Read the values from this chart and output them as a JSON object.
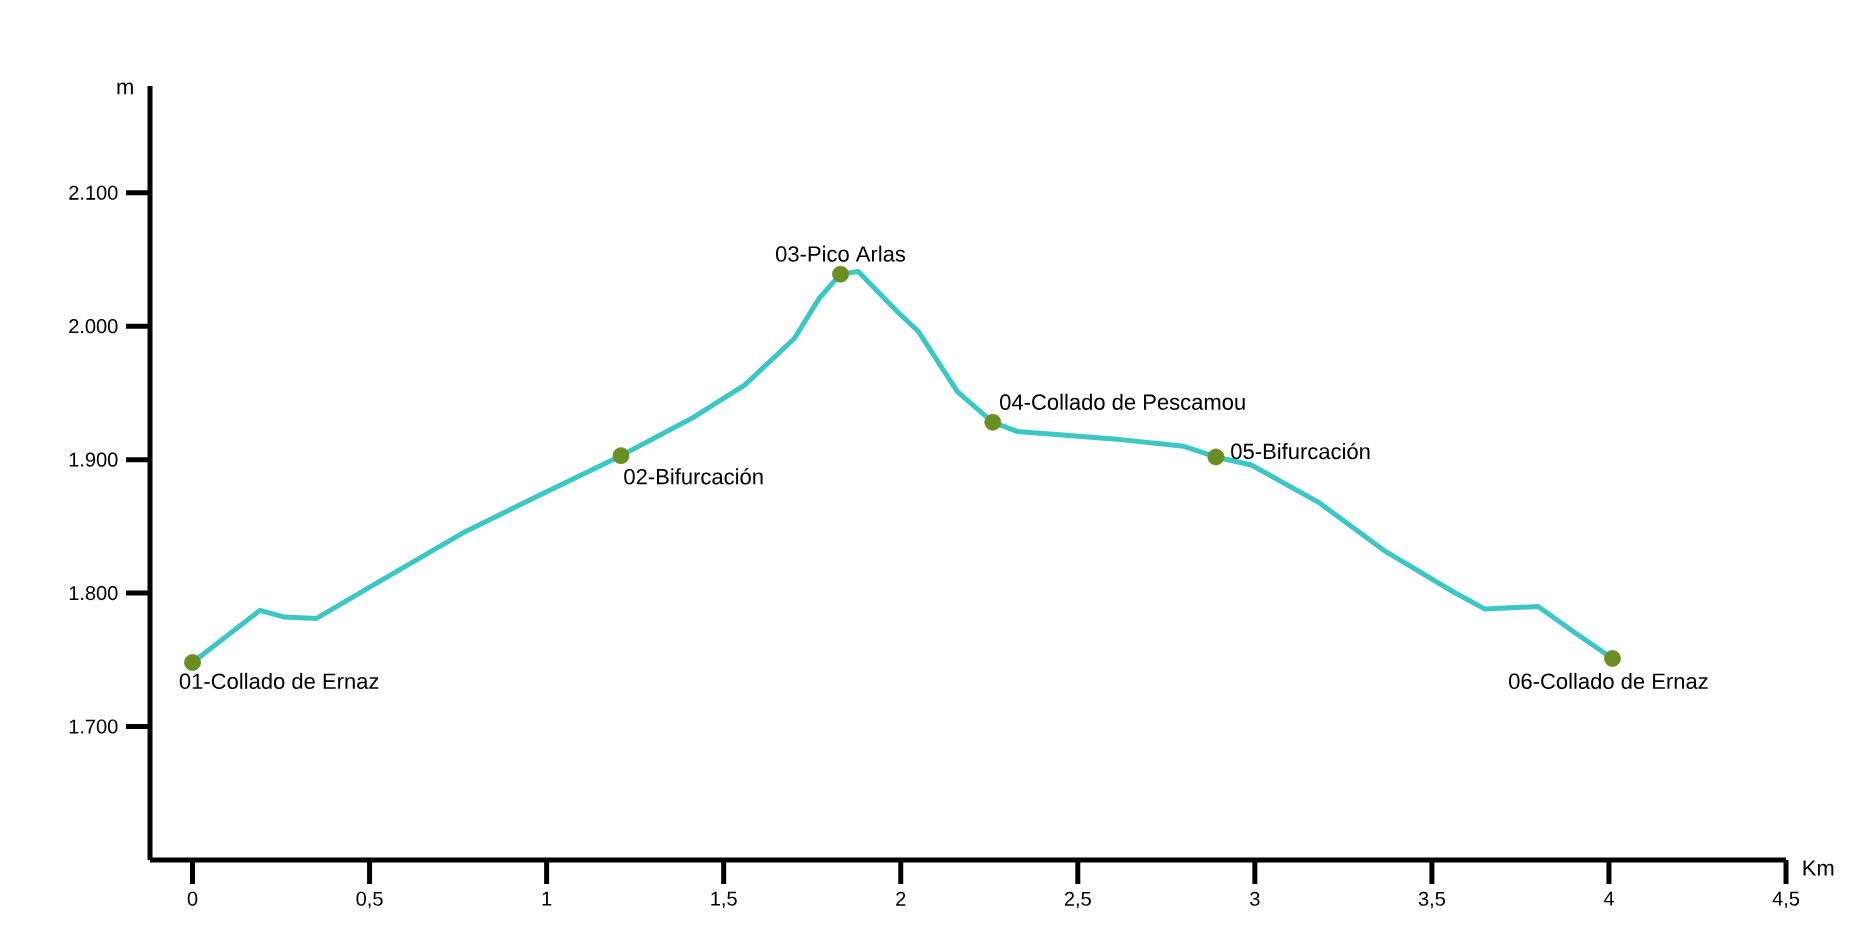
{
  "chart_data": {
    "type": "line",
    "xlabel": "Km",
    "ylabel": "m",
    "xlim": [
      -0.12,
      4.5
    ],
    "ylim": [
      1600,
      2180
    ],
    "xticks": [
      0,
      {
        "value": 0.5,
        "label": "0,5"
      },
      1,
      {
        "value": 1.5,
        "label": "1,5"
      },
      2,
      {
        "value": 2.5,
        "label": "2,5"
      },
      3,
      {
        "value": 3.5,
        "label": "3,5"
      },
      4,
      {
        "value": 4.5,
        "label": "4,5"
      }
    ],
    "yticks": [
      {
        "value": 1700,
        "label": "1.700"
      },
      {
        "value": 1800,
        "label": "1.800"
      },
      {
        "value": 1900,
        "label": "1.900"
      },
      {
        "value": 2000,
        "label": "2.000"
      },
      {
        "value": 2100,
        "label": "2.100"
      }
    ],
    "grid": false,
    "marker": "none",
    "line_style": "solid",
    "series": [
      {
        "color": "#3cc6c6",
        "x": [
          0,
          0.19,
          0.26,
          0.35,
          0.51,
          0.77,
          1.0,
          1.21,
          1.41,
          1.56,
          1.7,
          1.77,
          1.83,
          1.88,
          1.99,
          2.05,
          2.16,
          2.26,
          2.33,
          2.62,
          2.8,
          2.89,
          2.99,
          3.18,
          3.37,
          3.56,
          3.65,
          3.8,
          3.9,
          4.01
        ],
        "values": [
          1748,
          1787,
          1782,
          1781,
          1806,
          1846,
          1876,
          1903,
          1931,
          1956,
          1991,
          2021,
          2039,
          2041,
          2011,
          1996,
          1951,
          1928,
          1921,
          1915,
          1910,
          1902,
          1896,
          1868,
          1831,
          1801,
          1788,
          1790,
          1771,
          1751
        ]
      },
      {
        "type": "scatter",
        "marker": "circle",
        "color": "#6b8e23",
        "x": [
          0,
          1.21,
          1.83,
          2.26,
          2.89,
          4.01
        ],
        "values": [
          1748,
          1903,
          2039,
          1928,
          1902,
          1751
        ]
      }
    ],
    "annotations": [
      {
        "text": "01-Collado de Ernaz",
        "x": 0,
        "y": 1748
      },
      {
        "text": "02-Bifurcación",
        "x": 1.21,
        "y": 1903
      },
      {
        "text": "03-Pico Arlas",
        "x": 1.83,
        "y": 2039
      },
      {
        "text": "04-Collado de Pescamou",
        "x": 2.26,
        "y": 1928
      },
      {
        "text": "05-Bifurcación",
        "x": 2.89,
        "y": 1902
      },
      {
        "text": "06-Collado de Ernaz",
        "x": 4.01,
        "y": 1751
      }
    ]
  }
}
